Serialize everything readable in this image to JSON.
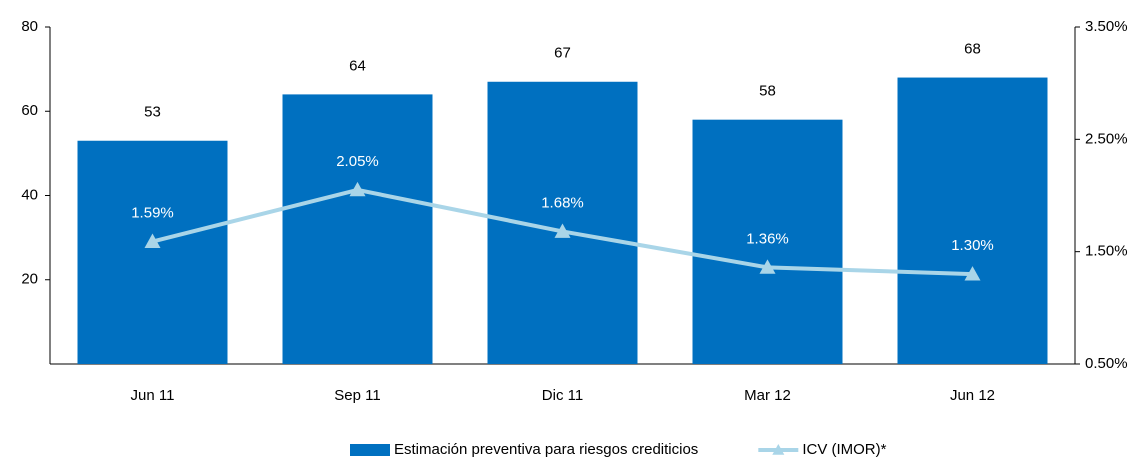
{
  "chart_data": {
    "type": "bar_line",
    "categories": [
      "Jun 11",
      "Sep 11",
      "Dic 11",
      "Mar 12",
      "Jun 12"
    ],
    "series": [
      {
        "name": "Estimación preventiva para riesgos crediticios",
        "type": "bar",
        "color": "#0070c0",
        "values": [
          53,
          64,
          67,
          58,
          68
        ]
      },
      {
        "name": "ICV (IMOR)*",
        "type": "line",
        "axis": "y2",
        "color": "#a9d5e8",
        "values": [
          1.59,
          2.05,
          1.68,
          1.36,
          1.3
        ],
        "value_labels": [
          "1.59%",
          "2.05%",
          "1.68%",
          "1.36%",
          "1.30%"
        ]
      }
    ],
    "ylim": [
      0,
      80
    ],
    "yticks": [
      20,
      40,
      60,
      80
    ],
    "y2lim": [
      0.5,
      3.5
    ],
    "y2ticks": [
      {
        "value": 0.5,
        "label": "0.50%"
      },
      {
        "value": 1.5,
        "label": "1.50%"
      },
      {
        "value": 2.5,
        "label": "2.50%"
      },
      {
        "value": 3.5,
        "label": "3.50%"
      }
    ],
    "legend": "bottom"
  }
}
